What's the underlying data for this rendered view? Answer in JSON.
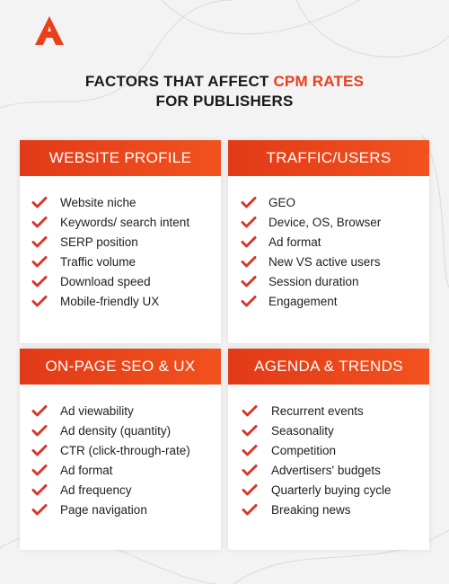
{
  "brand": {
    "logo_icon": "brand-logo-a-icon",
    "accent_color": "#e8401c"
  },
  "title": {
    "line1_prefix": "FACTORS THAT AFFECT",
    "line1_highlight": "CPM RATES",
    "line2": "FOR PUBLISHERS"
  },
  "cards": [
    {
      "heading": "WEBSITE PROFILE",
      "items": [
        "Website niche",
        "Keywords/ search intent",
        "SERP position",
        "Traffic volume",
        "Download speed",
        "Mobile-friendly UX"
      ]
    },
    {
      "heading": "TRAFFIC/USERS",
      "items": [
        "GEO",
        "Device, OS, Browser",
        "Ad format",
        "New VS active users",
        "Session duration",
        "Engagement"
      ]
    },
    {
      "heading": "ON-PAGE SEO & UX",
      "items": [
        "Ad viewability",
        "Ad density (quantity)",
        "CTR (click-through-rate)",
        "Ad format",
        "Ad frequency",
        "Page navigation"
      ]
    },
    {
      "heading": "AGENDA & TRENDS",
      "items": [
        "Recurrent events",
        "Seasonality",
        "Competition",
        "Advertisers' budgets",
        "Quarterly buying cycle",
        "Breaking news"
      ]
    }
  ],
  "check_icon": "checkmark-icon",
  "check_color": "#d9372a"
}
